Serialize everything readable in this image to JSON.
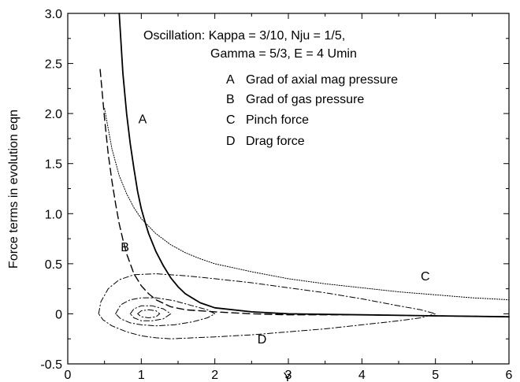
{
  "chart_data": {
    "type": "line",
    "title": "",
    "xlabel": "Y",
    "ylabel": "Force terms in evolution eqn",
    "xlim": [
      0,
      6
    ],
    "ylim": [
      -0.5,
      3.0
    ],
    "x_ticks": [
      "0",
      "1",
      "2",
      "3",
      "4",
      "5",
      "6"
    ],
    "y_ticks": [
      "-0.5",
      "0",
      "0.5",
      "1.0",
      "1.5",
      "2.0",
      "2.5",
      "3.0"
    ],
    "grid": false,
    "annotation": {
      "line1": "Oscillation: Kappa = 3/10, Nju = 1/5,",
      "line2": "Gamma = 5/3, E = 4 Umin"
    },
    "legend": [
      {
        "key": "A",
        "text": "Grad of axial mag pressure"
      },
      {
        "key": "B",
        "text": "Grad of gas pressure"
      },
      {
        "key": "C",
        "text": "Pinch force"
      },
      {
        "key": "D",
        "text": "Drag force"
      }
    ],
    "series": [
      {
        "name": "A",
        "style": "solid",
        "label": "A",
        "label_at": [
          0.96,
          1.95
        ],
        "points": [
          [
            0.7,
            3.0
          ],
          [
            0.75,
            2.4
          ],
          [
            0.8,
            2.0
          ],
          [
            0.85,
            1.7
          ],
          [
            0.9,
            1.45
          ],
          [
            0.95,
            1.22
          ],
          [
            1.0,
            1.05
          ],
          [
            1.05,
            0.92
          ],
          [
            1.1,
            0.8
          ],
          [
            1.2,
            0.62
          ],
          [
            1.3,
            0.48
          ],
          [
            1.4,
            0.36
          ],
          [
            1.5,
            0.27
          ],
          [
            1.6,
            0.2
          ],
          [
            1.8,
            0.11
          ],
          [
            2.0,
            0.06
          ],
          [
            2.5,
            0.02
          ],
          [
            3.0,
            0.0
          ],
          [
            4.0,
            -0.01
          ],
          [
            5.0,
            -0.02
          ],
          [
            6.0,
            -0.03
          ]
        ]
      },
      {
        "name": "B",
        "style": "dashed",
        "label": "B",
        "label_at": [
          0.72,
          0.67
        ],
        "points": [
          [
            0.44,
            2.44
          ],
          [
            0.5,
            1.95
          ],
          [
            0.55,
            1.6
          ],
          [
            0.6,
            1.33
          ],
          [
            0.65,
            1.1
          ],
          [
            0.7,
            0.9
          ],
          [
            0.75,
            0.74
          ],
          [
            0.8,
            0.6
          ],
          [
            0.9,
            0.4
          ],
          [
            1.0,
            0.28
          ],
          [
            1.1,
            0.2
          ],
          [
            1.2,
            0.14
          ],
          [
            1.4,
            0.07
          ],
          [
            1.6,
            0.04
          ],
          [
            2.0,
            0.02
          ],
          [
            2.5,
            0.0
          ],
          [
            3.0,
            -0.01
          ],
          [
            4.0,
            -0.01
          ],
          [
            5.0,
            -0.02
          ],
          [
            6.0,
            -0.03
          ]
        ]
      },
      {
        "name": "C",
        "style": "dotted",
        "label": "C",
        "label_at": [
          4.8,
          0.38
        ],
        "points": [
          [
            0.5,
            2.05
          ],
          [
            0.6,
            1.65
          ],
          [
            0.7,
            1.38
          ],
          [
            0.8,
            1.2
          ],
          [
            0.9,
            1.06
          ],
          [
            1.0,
            0.95
          ],
          [
            1.2,
            0.8
          ],
          [
            1.4,
            0.69
          ],
          [
            1.6,
            0.61
          ],
          [
            1.8,
            0.55
          ],
          [
            2.0,
            0.5
          ],
          [
            2.5,
            0.42
          ],
          [
            3.0,
            0.35
          ],
          [
            3.5,
            0.3
          ],
          [
            4.0,
            0.26
          ],
          [
            4.5,
            0.22
          ],
          [
            5.0,
            0.19
          ],
          [
            5.5,
            0.16
          ],
          [
            6.0,
            0.14
          ]
        ]
      },
      {
        "name": "D",
        "style": "dash-dot",
        "label": "D",
        "label_at": [
          2.58,
          -0.25
        ],
        "loops": [
          [
            [
              0.42,
              0.0
            ],
            [
              0.45,
              0.12
            ],
            [
              0.55,
              0.25
            ],
            [
              0.7,
              0.34
            ],
            [
              0.9,
              0.39
            ],
            [
              1.2,
              0.4
            ],
            [
              1.6,
              0.38
            ],
            [
              2.0,
              0.35
            ],
            [
              2.5,
              0.31
            ],
            [
              3.0,
              0.26
            ],
            [
              3.5,
              0.21
            ],
            [
              4.0,
              0.15
            ],
            [
              4.5,
              0.08
            ],
            [
              4.8,
              0.04
            ],
            [
              5.0,
              0.0
            ],
            [
              4.8,
              -0.04
            ],
            [
              4.5,
              -0.07
            ],
            [
              4.0,
              -0.11
            ],
            [
              3.5,
              -0.15
            ],
            [
              3.0,
              -0.18
            ],
            [
              2.5,
              -0.21
            ],
            [
              2.0,
              -0.23
            ],
            [
              1.7,
              -0.24
            ],
            [
              1.4,
              -0.25
            ],
            [
              1.2,
              -0.24
            ],
            [
              1.0,
              -0.22
            ],
            [
              0.8,
              -0.18
            ],
            [
              0.6,
              -0.12
            ],
            [
              0.48,
              -0.06
            ],
            [
              0.42,
              0.0
            ]
          ],
          [
            [
              0.65,
              0.0
            ],
            [
              0.72,
              0.09
            ],
            [
              0.85,
              0.14
            ],
            [
              1.0,
              0.16
            ],
            [
              1.2,
              0.16
            ],
            [
              1.45,
              0.13
            ],
            [
              1.7,
              0.08
            ],
            [
              1.9,
              0.04
            ],
            [
              2.0,
              0.0
            ],
            [
              1.9,
              -0.04
            ],
            [
              1.7,
              -0.08
            ],
            [
              1.45,
              -0.11
            ],
            [
              1.2,
              -0.12
            ],
            [
              1.0,
              -0.11
            ],
            [
              0.85,
              -0.09
            ],
            [
              0.72,
              -0.05
            ],
            [
              0.65,
              0.0
            ]
          ],
          [
            [
              0.85,
              0.0
            ],
            [
              0.9,
              0.05
            ],
            [
              1.0,
              0.08
            ],
            [
              1.15,
              0.08
            ],
            [
              1.3,
              0.05
            ],
            [
              1.4,
              0.0
            ],
            [
              1.3,
              -0.05
            ],
            [
              1.15,
              -0.07
            ],
            [
              1.0,
              -0.07
            ],
            [
              0.9,
              -0.04
            ],
            [
              0.85,
              0.0
            ]
          ],
          [
            [
              0.95,
              0.0
            ],
            [
              1.0,
              0.03
            ],
            [
              1.1,
              0.04
            ],
            [
              1.2,
              0.03
            ],
            [
              1.25,
              0.0
            ],
            [
              1.2,
              -0.03
            ],
            [
              1.1,
              -0.04
            ],
            [
              1.0,
              -0.03
            ],
            [
              0.95,
              0.0
            ]
          ]
        ]
      }
    ]
  }
}
